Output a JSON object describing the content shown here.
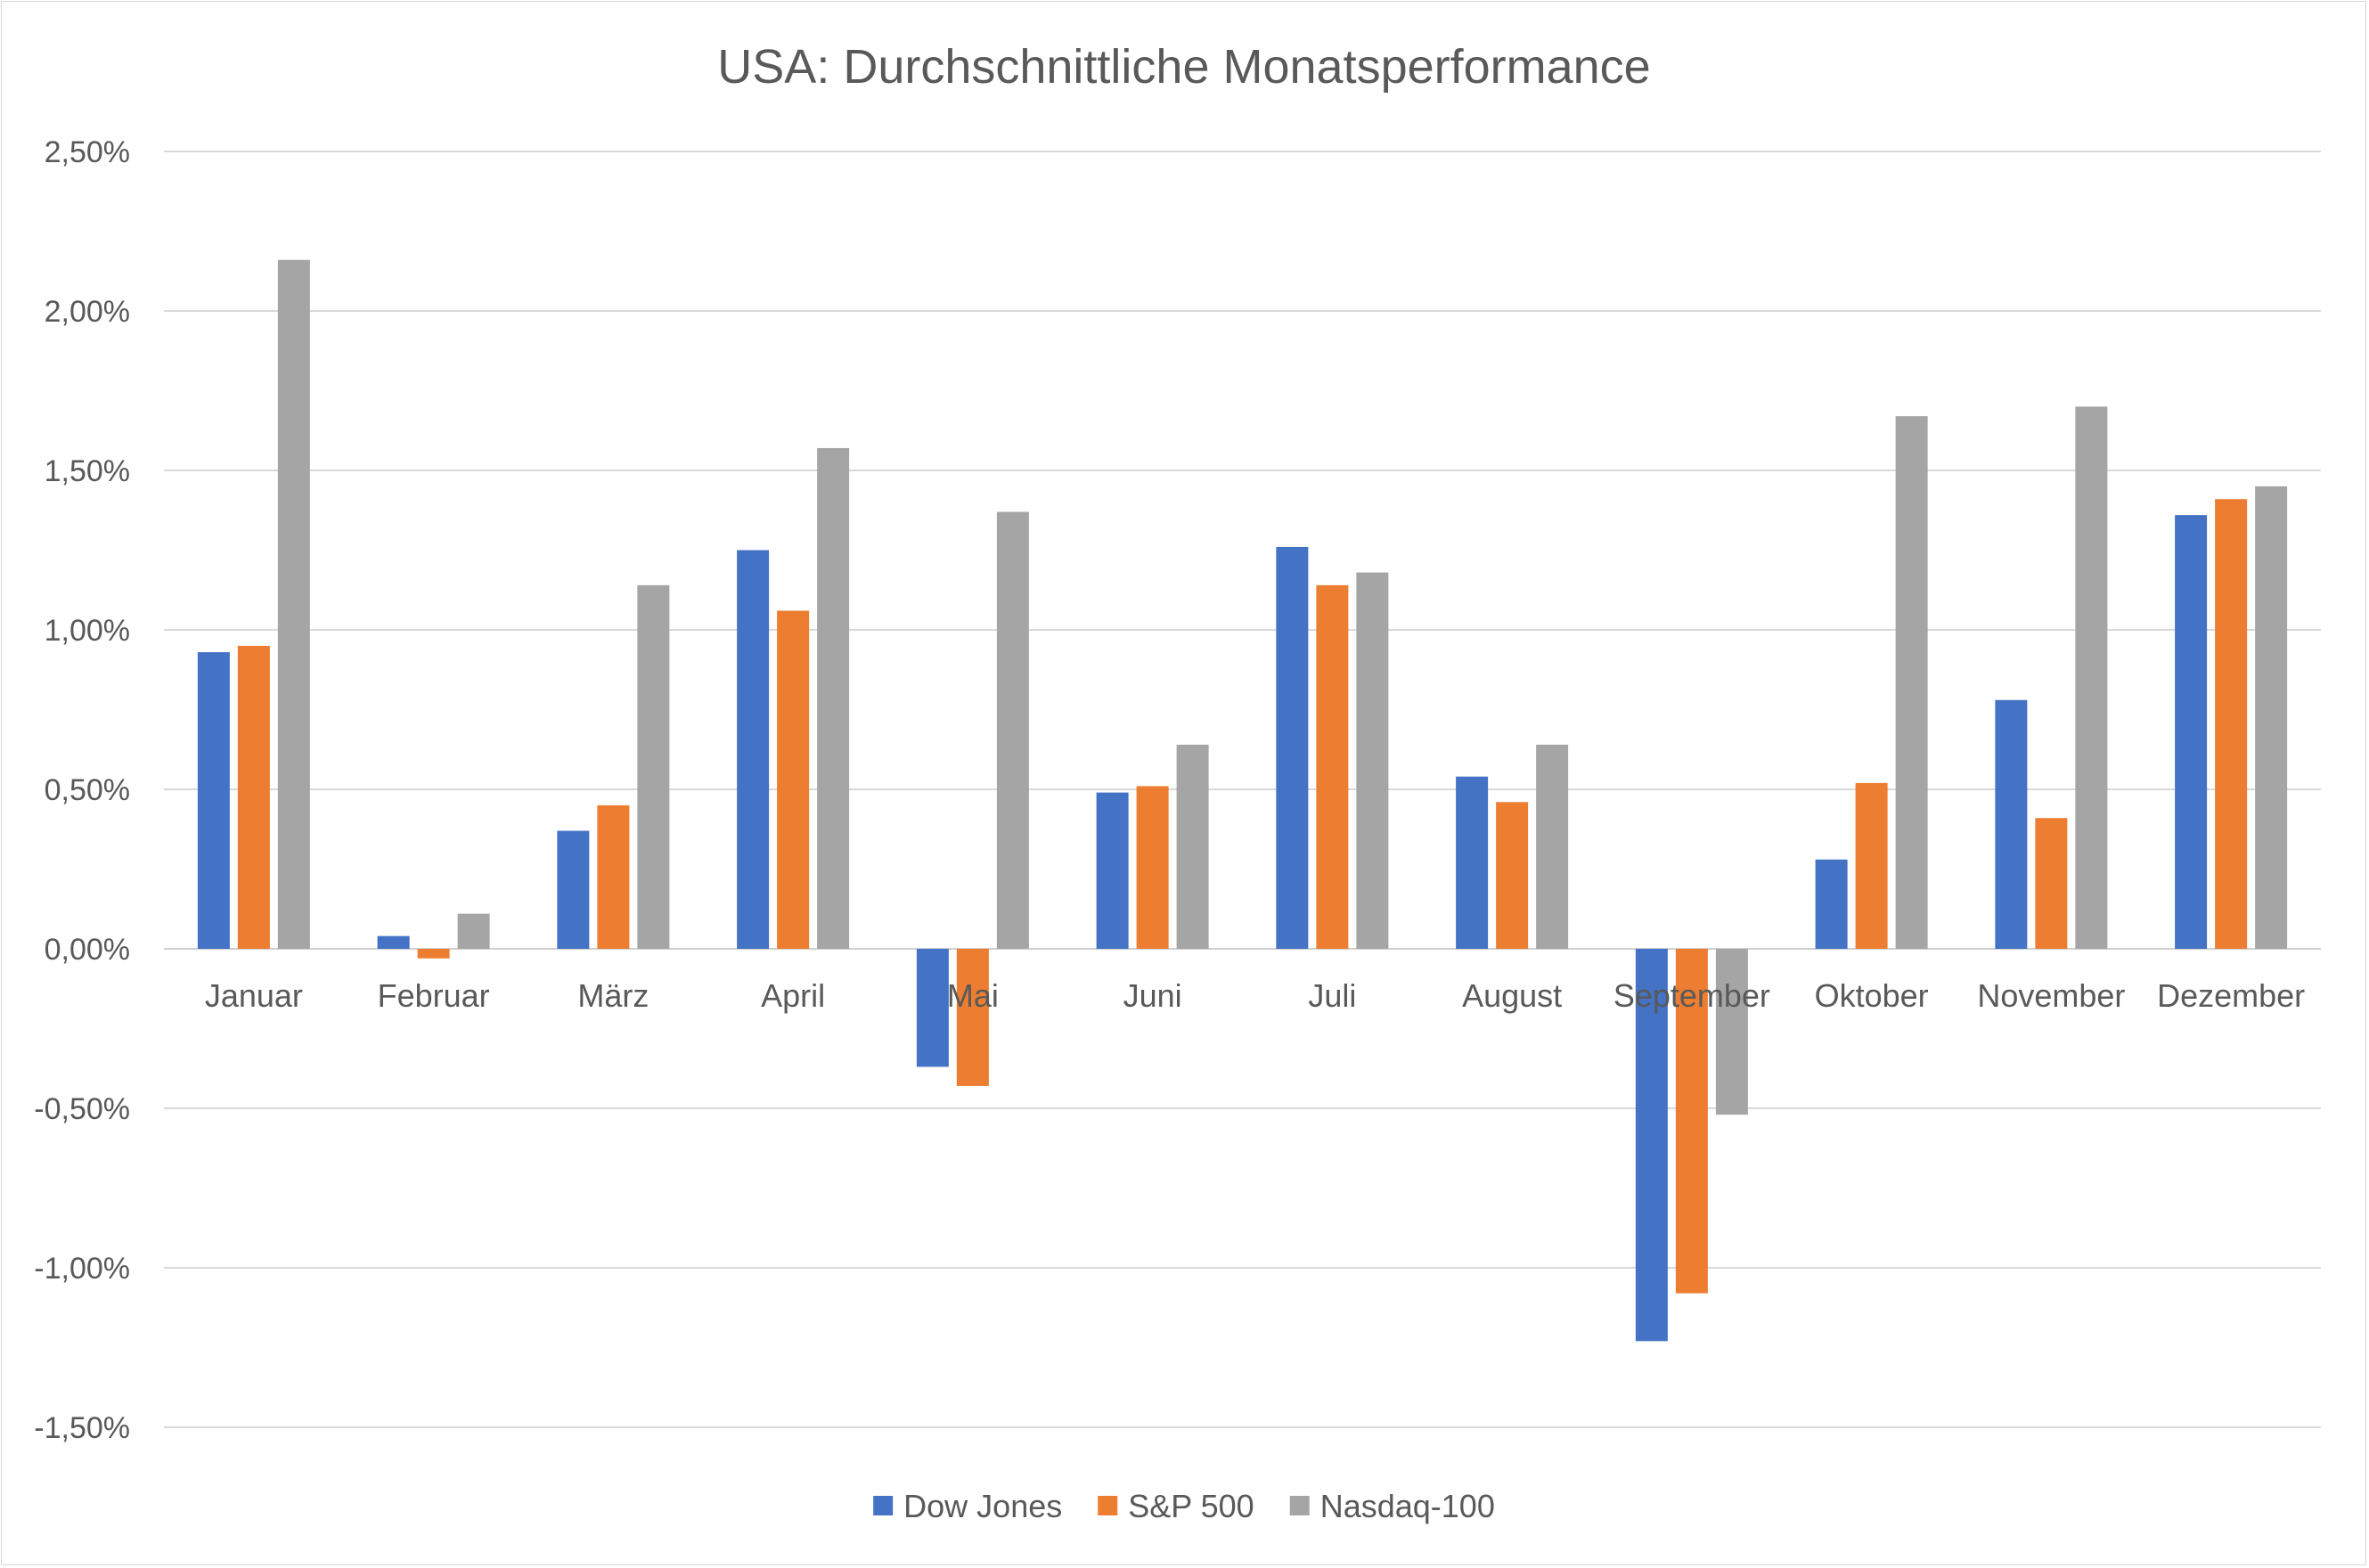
{
  "chart_data": {
    "type": "bar",
    "title": "USA: Durchschnittliche Monatsperformance",
    "xlabel": "",
    "ylabel": "",
    "ylim": [
      -1.5,
      2.5
    ],
    "y_ticks": [
      2.5,
      2.0,
      1.5,
      1.0,
      0.5,
      0.0,
      -0.5,
      -1.0,
      -1.5
    ],
    "y_tick_labels": [
      "2,50%",
      "2,00%",
      "1,50%",
      "1,00%",
      "0,50%",
      "0,00%",
      "-0,50%",
      "-1,00%",
      "-1,50%"
    ],
    "grid": true,
    "legend_position": "bottom",
    "categories": [
      "Januar",
      "Februar",
      "März",
      "April",
      "Mai",
      "Juni",
      "Juli",
      "August",
      "September",
      "Oktober",
      "November",
      "Dezember"
    ],
    "series": [
      {
        "name": "Dow Jones",
        "color": "#4472c4",
        "values": [
          0.93,
          0.04,
          0.37,
          1.25,
          -0.37,
          0.49,
          1.26,
          0.54,
          -1.23,
          0.28,
          0.78,
          1.36
        ]
      },
      {
        "name": "S&P 500",
        "color": "#ed7d31",
        "values": [
          0.95,
          -0.03,
          0.45,
          1.06,
          -0.43,
          0.51,
          1.14,
          0.46,
          -1.08,
          0.52,
          0.41,
          1.41
        ]
      },
      {
        "name": "Nasdaq-100",
        "color": "#a5a5a5",
        "values": [
          2.16,
          0.11,
          1.14,
          1.57,
          1.37,
          0.64,
          1.18,
          0.64,
          -0.52,
          1.67,
          1.7,
          1.45
        ]
      }
    ]
  }
}
